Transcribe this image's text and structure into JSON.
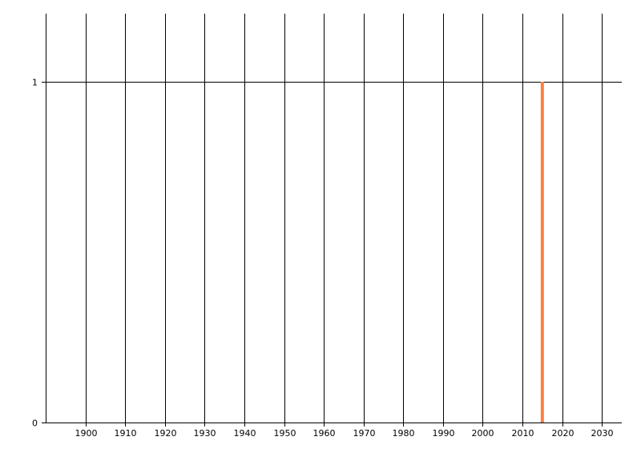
{
  "chart_data": {
    "type": "bar",
    "title": "",
    "xlabel": "",
    "ylabel": "",
    "xlim": [
      1890,
      2035
    ],
    "ylim": [
      0,
      1.2
    ],
    "x_ticks": [
      1900,
      1910,
      1920,
      1930,
      1940,
      1950,
      1960,
      1970,
      1980,
      1990,
      2000,
      2010,
      2020,
      2030
    ],
    "y_ticks": [
      0,
      1
    ],
    "grid": {
      "vertical": true,
      "horizontal": true
    },
    "series": [
      {
        "x": [
          2015
        ],
        "values": [
          1
        ],
        "color": "#FF7F3F"
      }
    ]
  }
}
